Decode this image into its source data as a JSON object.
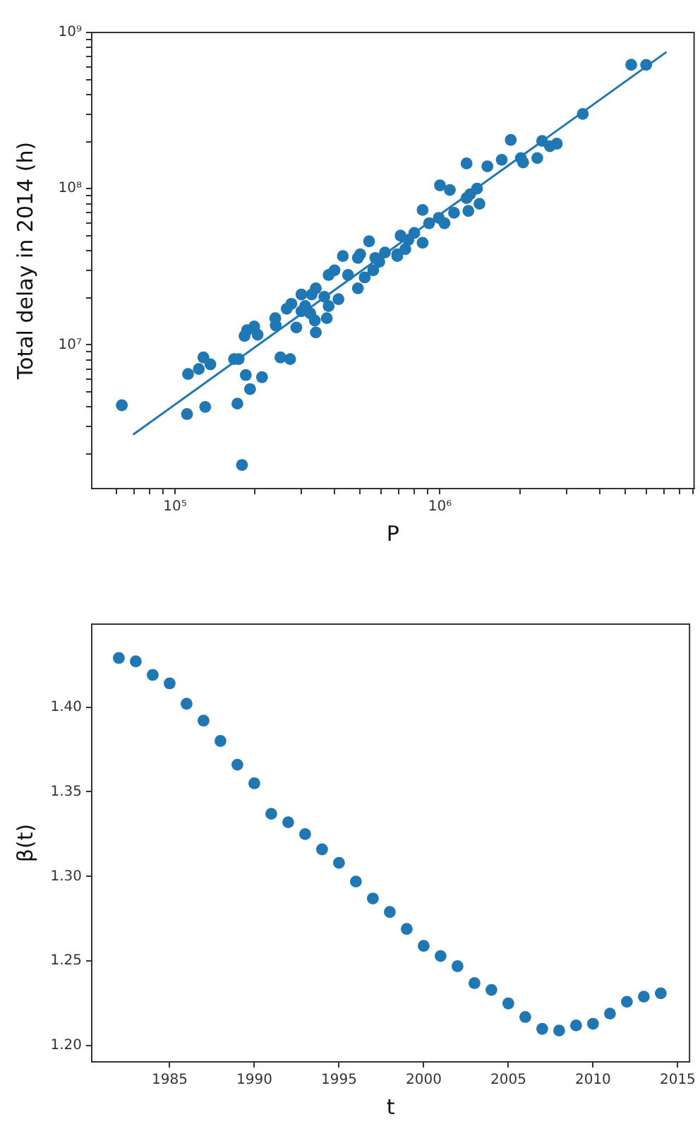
{
  "chart_data": [
    {
      "type": "scatter",
      "xlabel": "P",
      "ylabel": "Total delay in 2014 (h)",
      "log": "xy",
      "marker": "circle",
      "xlim": [
        48500,
        9100000
      ],
      "ylim": [
        1200000,
        1000000000
      ],
      "xticks": [
        {
          "value": 60000,
          "label": null
        },
        {
          "value": 70000,
          "label": null
        },
        {
          "value": 80000,
          "label": null
        },
        {
          "value": 90000,
          "label": null
        },
        {
          "value": 100000,
          "label": "10⁵"
        },
        {
          "value": 200000,
          "label": null
        },
        {
          "value": 300000,
          "label": null
        },
        {
          "value": 400000,
          "label": null
        },
        {
          "value": 500000,
          "label": null
        },
        {
          "value": 600000,
          "label": null
        },
        {
          "value": 700000,
          "label": null
        },
        {
          "value": 800000,
          "label": null
        },
        {
          "value": 900000,
          "label": null
        },
        {
          "value": 1000000,
          "label": "10⁶"
        },
        {
          "value": 2000000,
          "label": null
        },
        {
          "value": 3000000,
          "label": null
        },
        {
          "value": 4000000,
          "label": null
        },
        {
          "value": 5000000,
          "label": null
        },
        {
          "value": 6000000,
          "label": null
        },
        {
          "value": 7000000,
          "label": null
        },
        {
          "value": 8000000,
          "label": null
        },
        {
          "value": 9000000,
          "label": null
        }
      ],
      "yticks": [
        {
          "value": 2000000,
          "label": null
        },
        {
          "value": 3000000,
          "label": null
        },
        {
          "value": 4000000,
          "label": null
        },
        {
          "value": 5000000,
          "label": null
        },
        {
          "value": 6000000,
          "label": null
        },
        {
          "value": 7000000,
          "label": null
        },
        {
          "value": 8000000,
          "label": null
        },
        {
          "value": 9000000,
          "label": null
        },
        {
          "value": 10000000,
          "label": "10⁷"
        },
        {
          "value": 20000000,
          "label": null
        },
        {
          "value": 30000000,
          "label": null
        },
        {
          "value": 40000000,
          "label": null
        },
        {
          "value": 50000000,
          "label": null
        },
        {
          "value": 60000000,
          "label": null
        },
        {
          "value": 70000000,
          "label": null
        },
        {
          "value": 80000000,
          "label": null
        },
        {
          "value": 90000000,
          "label": null
        },
        {
          "value": 100000000,
          "label": "10⁸"
        },
        {
          "value": 200000000,
          "label": null
        },
        {
          "value": 300000000,
          "label": null
        },
        {
          "value": 400000000,
          "label": null
        },
        {
          "value": 500000000,
          "label": null
        },
        {
          "value": 600000000,
          "label": null
        },
        {
          "value": 700000000,
          "label": null
        },
        {
          "value": 800000000,
          "label": null
        },
        {
          "value": 900000000,
          "label": null
        },
        {
          "value": 1000000000,
          "label": "10⁹"
        }
      ],
      "series": [
        {
          "color": "#1f77b4",
          "x": [
            5270000.0,
            6000000.0,
            3460000.0,
            1850000.0,
            2430000.0,
            2760000.0,
            2600000.0,
            1710000.0,
            2020000.0,
            2060000.0,
            2330000.0,
            1510000.0,
            1260000.0,
            1000000.0,
            1090000.0,
            1380000.0,
            1300000.0,
            1260000.0,
            1410000.0,
            1280000.0,
            1130000.0,
            860000.0,
            990000.0,
            1040000.0,
            910000.0,
            710000.0,
            800000.0,
            760000.0,
            860000.0,
            690000.0,
            740000.0,
            540000.0,
            430000.0,
            500000.0,
            620000.0,
            570000.0,
            400000.0,
            380000.0,
            450000.0,
            490000.0,
            690000.0,
            340000.0,
            300000.0,
            328000.0,
            366000.0,
            414000.0,
            490000.0,
            520000.0,
            560000.0,
            590000.0,
            275000.0,
            310000.0,
            264000.0,
            300000.0,
            324000.0,
            380000.0,
            374000.0,
            239000.0,
            240000.0,
            287000.0,
            337000.0,
            340000.0,
            199000.0,
            187000.0,
            183000.0,
            205000.0,
            167000.0,
            174000.0,
            250000.0,
            272000.0,
            128000.0,
            136000.0,
            123000.0,
            112000.0,
            185000.0,
            213000.0,
            192000.0,
            63000.0,
            172000.0,
            130000.0,
            111000.0,
            179000.0
          ],
          "values": [
            621000000.0,
            620000000.0,
            301000000.0,
            205000000.0,
            202000000.0,
            194000000.0,
            187000000.0,
            153000000.0,
            157000000.0,
            147000000.0,
            157000000.0,
            139000000.0,
            145000000.0,
            105000000.0,
            98000000.0,
            100000000.0,
            92000000.0,
            87000000.0,
            80000000.0,
            72000000.0,
            70000000.0,
            73000000.0,
            65000000.0,
            60000000.0,
            60000000.0,
            50000000.0,
            52000000.0,
            47000000.0,
            45000000.0,
            38000000.0,
            41000000.0,
            46000000.0,
            37000000.0,
            38000000.0,
            39000000.0,
            36000000.0,
            30000000.0,
            28000000.0,
            28000000.0,
            36000000.0,
            37000000.0,
            23000000.0,
            21000000.0,
            21000000.0,
            20300000.0,
            19600000.0,
            23000000.0,
            27000000.0,
            30000000.0,
            34000000.0,
            18300000.0,
            17700000.0,
            17000000.0,
            16400000.0,
            15900000.0,
            17700000.0,
            14800000.0,
            14800000.0,
            13300000.0,
            12900000.0,
            14300000.0,
            12000000.0,
            13100000.0,
            12400000.0,
            11400000.0,
            11600000.0,
            8100000.0,
            8100000.0,
            8300000.0,
            8100000.0,
            8300000.0,
            7500000.0,
            7000000.0,
            6500000.0,
            6400000.0,
            6200000.0,
            5200000.0,
            4100000.0,
            4200000.0,
            4000000.0,
            3600000.0,
            1700000.0
          ]
        },
        {
          "type": "line",
          "marker": "none",
          "color": "#1f77b4",
          "x": [
            69500.0,
            7160000.0
          ],
          "values": [
            2660000.0,
            750000000.0
          ]
        }
      ]
    },
    {
      "type": "scatter",
      "xlabel": "t",
      "ylabel": "β(t)",
      "marker": "circle",
      "xlim": [
        1980.4,
        2015.7
      ],
      "ylim": [
        1.1905,
        1.449
      ],
      "xticks": [
        1985,
        1990,
        1995,
        2000,
        2005,
        2010,
        2015
      ],
      "yticks": [
        {
          "value": 1.2,
          "label": "1.20"
        },
        {
          "value": 1.25,
          "label": "1.25"
        },
        {
          "value": 1.3,
          "label": "1.30"
        },
        {
          "value": 1.35,
          "label": "1.35"
        },
        {
          "value": 1.4,
          "label": "1.40"
        }
      ],
      "series": [
        {
          "color": "#1f77b4",
          "x": [
            1982,
            1983,
            1984,
            1985,
            1986,
            1987,
            1988,
            1989,
            1990,
            1991,
            1992,
            1993,
            1994,
            1995,
            1996,
            1997,
            1998,
            1999,
            2000,
            2001,
            2002,
            2003,
            2004,
            2005,
            2006,
            2007,
            2008,
            2009,
            2010,
            2011,
            2012,
            2013,
            2014
          ],
          "values": [
            1.429,
            1.427,
            1.419,
            1.414,
            1.402,
            1.392,
            1.38,
            1.366,
            1.355,
            1.337,
            1.332,
            1.325,
            1.316,
            1.308,
            1.297,
            1.287,
            1.279,
            1.269,
            1.259,
            1.253,
            1.247,
            1.237,
            1.233,
            1.225,
            1.217,
            1.21,
            1.209,
            1.212,
            1.213,
            1.219,
            1.226,
            1.229,
            1.231
          ]
        }
      ]
    }
  ]
}
